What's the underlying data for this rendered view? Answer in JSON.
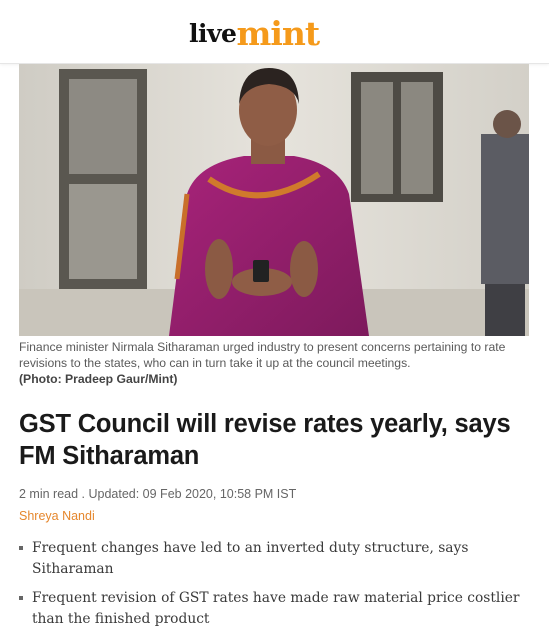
{
  "header": {
    "logo_part1": "live",
    "logo_part2": "mint",
    "logo_accent_color": "#f59a1b"
  },
  "hero": {
    "caption": "Finance minister Nirmala Sitharaman urged industry to present concerns pertaining to rate revisions to the states, who can in turn take it up at the council meetings.",
    "credit": "(Photo: Pradeep Gaur/Mint)"
  },
  "article": {
    "headline": "GST Council will revise rates yearly, says FM Sitharaman",
    "meta": "2 min read . Updated: 09 Feb 2020, 10:58 PM IST",
    "author": "Shreya Nandi",
    "author_color": "#e5872d",
    "summary": [
      "Frequent changes have led to an inverted duty structure, says Sitharaman",
      "Frequent revision of GST rates have made raw material price costlier than the finished product"
    ]
  }
}
